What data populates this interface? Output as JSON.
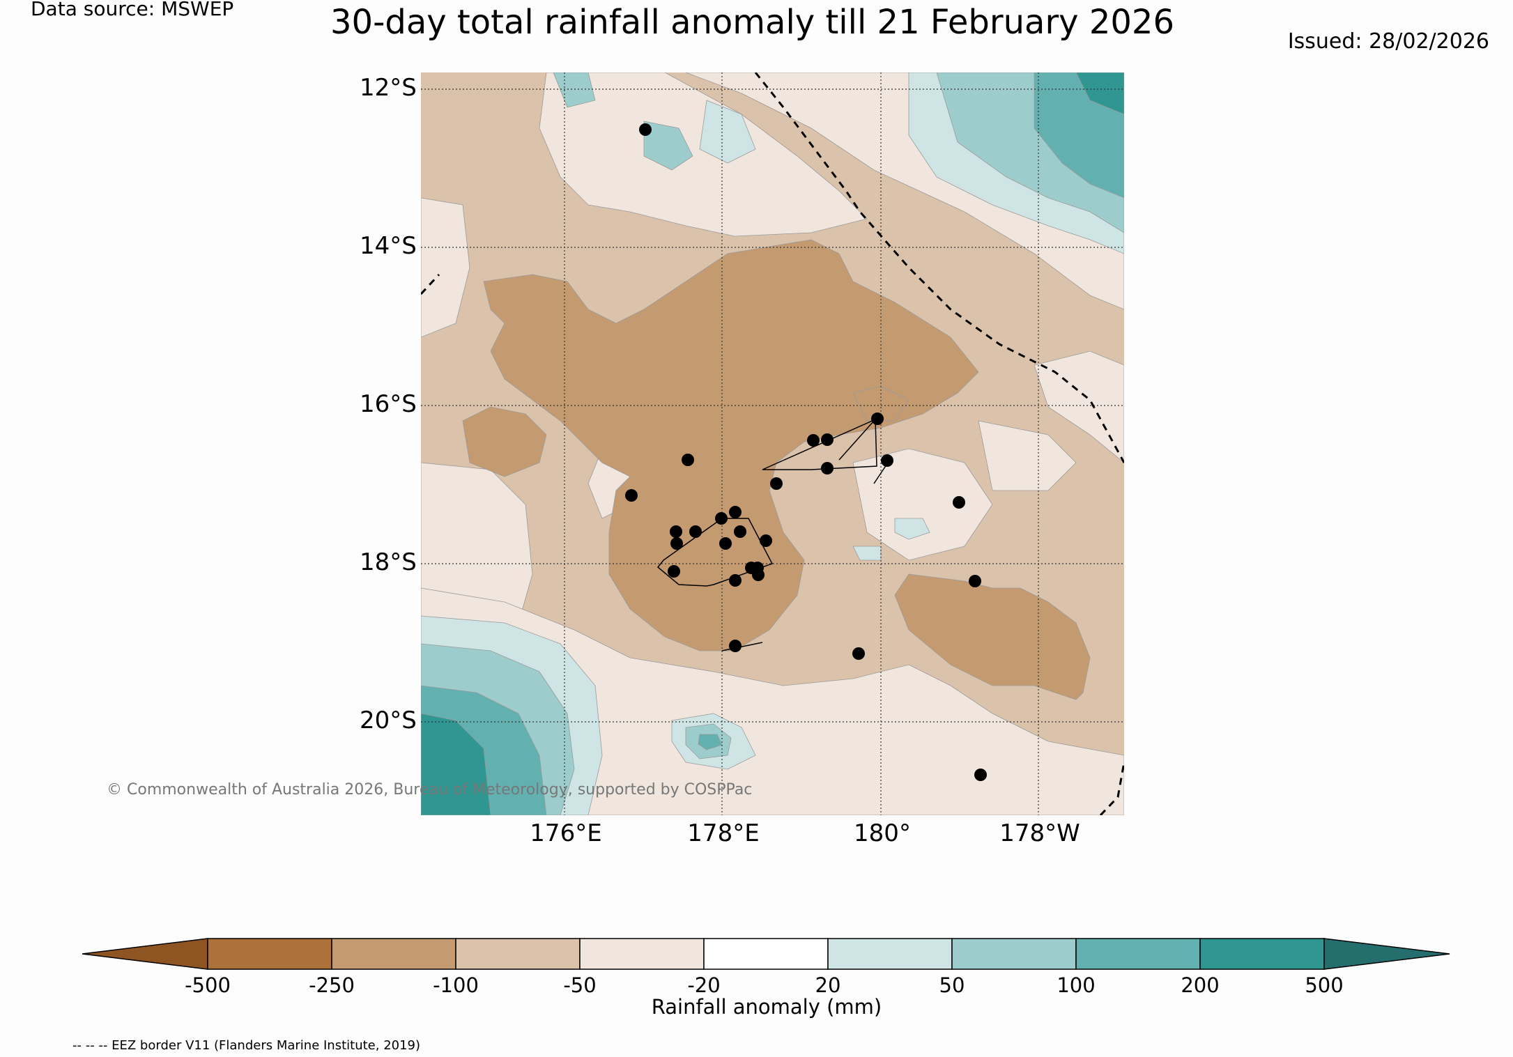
{
  "source": "Data source: MSWEP",
  "title": "30-day total rainfall anomaly till 21 February 2026",
  "issued": "Issued: 28/02/2026",
  "lat_labels": [
    "12°S",
    "14°S",
    "16°S",
    "18°S",
    "20°S"
  ],
  "lon_labels": [
    "176°E",
    "178°E",
    "180°",
    "178°W"
  ],
  "copyright": "© Commonwealth of Australia 2026, Bureau of Meteorology, supported by COSPPac",
  "colorbar": {
    "label": "Rainfall anomaly (mm)",
    "ticks": [
      "-500",
      "-250",
      "-100",
      "-50",
      "-20",
      "20",
      "50",
      "100",
      "200",
      "500"
    ],
    "colors": [
      "#8e5421",
      "#ad7239",
      "#c49b71",
      "#dbc2aa",
      "#f1e6dd",
      "#ffffff",
      "#cfe5e5",
      "#9dcccc",
      "#62b0b0",
      "#2f9692",
      "#246f6e"
    ]
  },
  "eez_note": "-- -- -- EEZ border V11 (Flanders Marine Institute, 2019)"
}
